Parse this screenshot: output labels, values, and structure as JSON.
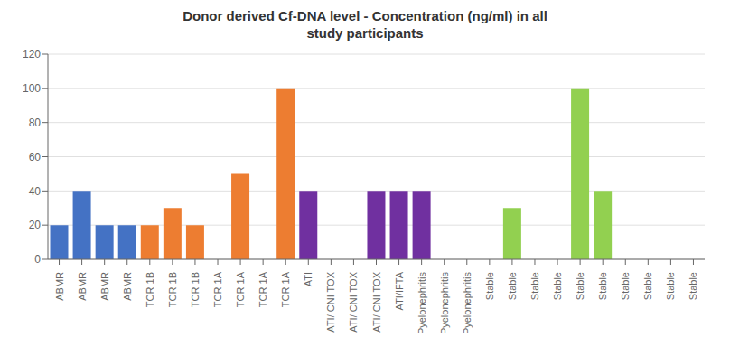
{
  "chart_data": {
    "type": "bar",
    "title": "Donor derived Cf-DNA level - Concentration (ng/ml) in all\nstudy participants",
    "categories": [
      "ABMR",
      "ABMR",
      "ABMR",
      "ABMR",
      "TCR 1B",
      "TCR 1B",
      "TCR 1B",
      "TCR 1A",
      "TCR 1A",
      "TCR 1A",
      "TCR 1A",
      "ATI",
      "ATI/ CNI TOX",
      "ATI/ CNI TOX",
      "ATI/ CNI TOX",
      "ATI/IFTA",
      "Pyelonephritis",
      "Pyelonephritis",
      "Pyelonephritis",
      "Stable",
      "Stable",
      "Stable",
      "Stable",
      "Stable",
      "Stable",
      "Stable",
      "Stable",
      "Stable",
      "Stable"
    ],
    "values": [
      20,
      40,
      20,
      20,
      20,
      30,
      20,
      0,
      50,
      0,
      100,
      40,
      0,
      0,
      40,
      40,
      40,
      0,
      0,
      0,
      30,
      0,
      0,
      100,
      40,
      0,
      0,
      0,
      0
    ],
    "colors": [
      "#4472C4",
      "#4472C4",
      "#4472C4",
      "#4472C4",
      "#ED7D31",
      "#ED7D31",
      "#ED7D31",
      "#ED7D31",
      "#ED7D31",
      "#ED7D31",
      "#ED7D31",
      "#7030A0",
      "#7030A0",
      "#7030A0",
      "#7030A0",
      "#7030A0",
      "#7030A0",
      "#7030A0",
      "#7030A0",
      "#92D050",
      "#92D050",
      "#92D050",
      "#92D050",
      "#92D050",
      "#92D050",
      "#92D050",
      "#92D050",
      "#92D050",
      "#92D050"
    ],
    "ylim": [
      0,
      120
    ],
    "yticks": [
      0,
      20,
      40,
      60,
      80,
      100,
      120
    ],
    "grid": true
  }
}
